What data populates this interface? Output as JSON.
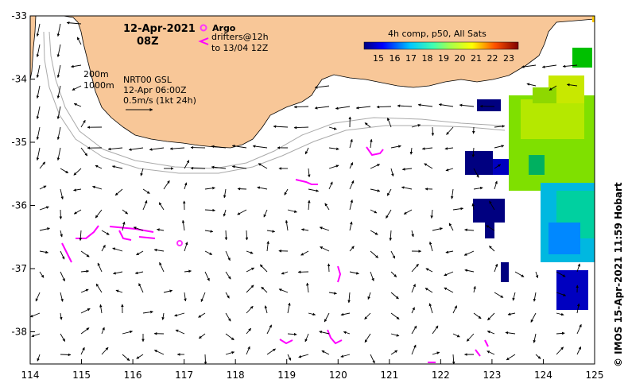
{
  "map": {
    "date": "12-Apr-2021",
    "hour": "08Z",
    "legend": {
      "argo_label": "Argo",
      "drifters_label": "drifters@12h",
      "drifters_range": "to 13/04 12Z"
    },
    "depth_labels": [
      "200m",
      "1000m"
    ],
    "current_source": "NRT00 GSL",
    "current_time": "12-Apr 06:00Z",
    "scale_label": "0.5m/s (1kt 24h)",
    "colorbar": {
      "title": "4h comp, p50, All Sats",
      "ticks": [
        "15",
        "16",
        "17",
        "18",
        "19",
        "20",
        "21",
        "22",
        "23"
      ]
    },
    "lon_ticks": [
      "114",
      "115",
      "116",
      "117",
      "118",
      "119",
      "120",
      "121",
      "122",
      "123",
      "124",
      "125"
    ],
    "lat_ticks": [
      "-33",
      "-34",
      "-35",
      "-36",
      "-37",
      "-38"
    ],
    "credit": "© IMOS 15-Apr-2021 11:59 Hobart",
    "colors": {
      "land": "#f8c798",
      "argo": "#ff33ff",
      "drifter": "#ff00ff",
      "arrow": "#000000",
      "isobath": "#aaaaaa"
    }
  }
}
